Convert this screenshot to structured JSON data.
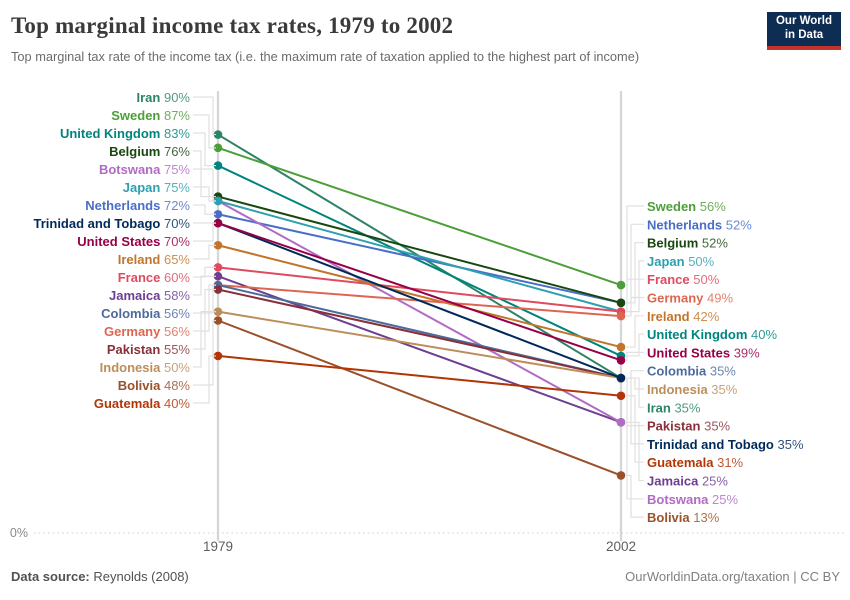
{
  "header": {
    "title": "Top marginal income tax rates, 1979 to 2002",
    "subtitle": "Top marginal tax rate of the income tax (i.e. the maximum rate of taxation applied to the highest part of income)",
    "logo": {
      "line1": "Our World",
      "line2": "in Data",
      "bg": "#0D2D52",
      "accent": "#C5312B"
    }
  },
  "chart_data": {
    "type": "line",
    "subtype": "slope",
    "x": [
      1979,
      2002
    ],
    "x_tick_labels": [
      "1979",
      "2002"
    ],
    "unit": "%",
    "ylim": [
      0,
      100
    ],
    "y_baseline_label": "0%",
    "grid": "baseline-only",
    "legend_position": "inline-labels",
    "series": [
      {
        "name": "Iran",
        "values": [
          90,
          35
        ],
        "color": "#2C8465"
      },
      {
        "name": "Sweden",
        "values": [
          87,
          56
        ],
        "color": "#4C9F38"
      },
      {
        "name": "United Kingdom",
        "values": [
          83,
          40
        ],
        "color": "#00847E"
      },
      {
        "name": "Netherlands",
        "values": [
          72,
          52
        ],
        "color": "#4A6EC8"
      },
      {
        "name": "Belgium",
        "values": [
          76,
          52
        ],
        "color": "#18470F"
      },
      {
        "name": "Jamaica",
        "values": [
          58,
          25
        ],
        "color": "#6D3E91"
      },
      {
        "name": "Botswana",
        "values": [
          75,
          25
        ],
        "color": "#B16BC4"
      },
      {
        "name": "Japan",
        "values": [
          75,
          50
        ],
        "color": "#2E9FAE"
      },
      {
        "name": "France",
        "values": [
          60,
          50
        ],
        "color": "#DF4A5F"
      },
      {
        "name": "Ireland",
        "values": [
          65,
          42
        ],
        "color": "#C2752A"
      },
      {
        "name": "Germany",
        "values": [
          56,
          49
        ],
        "color": "#DD6651"
      },
      {
        "name": "Colombia",
        "values": [
          56,
          35
        ],
        "color": "#4C6A9C"
      },
      {
        "name": "Pakistan",
        "values": [
          55,
          35
        ],
        "color": "#883039"
      },
      {
        "name": "Indonesia",
        "values": [
          50,
          35
        ],
        "color": "#BC8E5A"
      },
      {
        "name": "Bolivia",
        "values": [
          48,
          13
        ],
        "color": "#9A5129"
      },
      {
        "name": "Guatemala",
        "values": [
          40,
          31
        ],
        "color": "#B13507"
      },
      {
        "name": "Trinidad and Tobago",
        "values": [
          70,
          35
        ],
        "color": "#00295B"
      },
      {
        "name": "United States",
        "values": [
          70,
          39
        ],
        "color": "#970046"
      }
    ],
    "left_label_order": [
      "Iran",
      "Sweden",
      "United Kingdom",
      "Belgium",
      "Botswana",
      "Japan",
      "Netherlands",
      "Trinidad and Tobago",
      "United States",
      "Ireland",
      "France",
      "Jamaica",
      "Colombia",
      "Germany",
      "Pakistan",
      "Indonesia",
      "Bolivia",
      "Guatemala"
    ],
    "right_label_order": [
      "Sweden",
      "Netherlands",
      "Belgium",
      "Japan",
      "France",
      "Germany",
      "Ireland",
      "United Kingdom",
      "United States",
      "Colombia",
      "Indonesia",
      "Iran",
      "Pakistan",
      "Trinidad and Tobago",
      "Guatemala",
      "Jamaica",
      "Botswana",
      "Bolivia"
    ]
  },
  "footer": {
    "source_label": "Data source:",
    "source_value": "Reynolds (2008)",
    "attribution": "OurWorldinData.org/taxation | CC BY"
  }
}
